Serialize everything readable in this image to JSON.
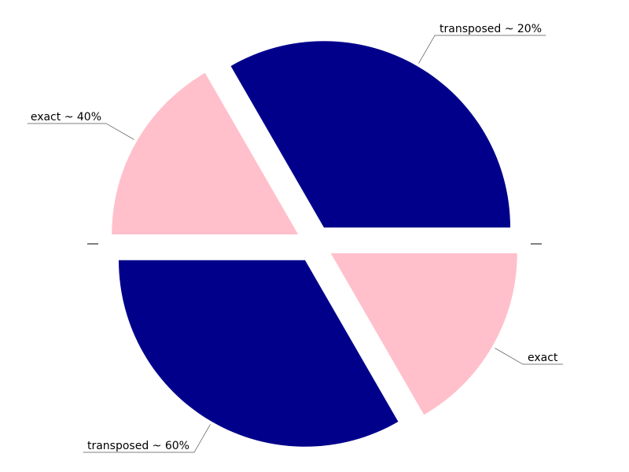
{
  "chart_data": {
    "type": "pie",
    "title": "",
    "direction": "counterclockwise",
    "start_angle_deg": 0,
    "slices": [
      {
        "label": "transposed ~ 20%",
        "value": 33.33,
        "color": "#00008B",
        "exploded": true
      },
      {
        "label": "exact ~ 40%",
        "value": 16.67,
        "color": "#FFC0CB",
        "exploded": true
      },
      {
        "label": "",
        "value": 0,
        "color": "#000000",
        "exploded": true
      },
      {
        "label": "transposed ~ 60%",
        "value": 33.33,
        "color": "#00008B",
        "exploded": true
      },
      {
        "label": "exact",
        "value": 16.67,
        "color": "#FFC0CB",
        "exploded": true
      },
      {
        "label": "",
        "value": 0,
        "color": "#000000",
        "exploded": true
      }
    ]
  }
}
